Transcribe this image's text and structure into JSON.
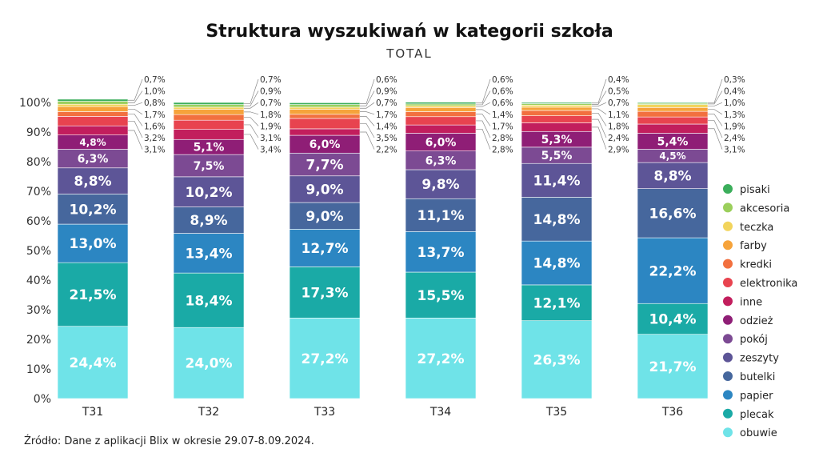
{
  "chart_data": {
    "type": "bar",
    "stacked": true,
    "title": "Struktura wyszukiwań w kategorii szkoła",
    "subtitle": "TOTAL",
    "categories": [
      "T31",
      "T32",
      "T33",
      "T34",
      "T35",
      "T36"
    ],
    "ylim": [
      0,
      100
    ],
    "yticks": [
      "0%",
      "10%",
      "20%",
      "30%",
      "40%",
      "50%",
      "60%",
      "70%",
      "80%",
      "90%",
      "100%"
    ],
    "grid": false,
    "legend_position": "right",
    "series": [
      {
        "name": "obuwie",
        "color": "#6fe3e8",
        "values": [
          24.4,
          24.0,
          27.2,
          27.2,
          26.3,
          21.7
        ],
        "labels": [
          "24,4%",
          "24,0%",
          "27,2%",
          "27,2%",
          "26,3%",
          "21,7%"
        ]
      },
      {
        "name": "plecak",
        "color": "#1aaaa6",
        "values": [
          21.5,
          18.4,
          17.3,
          15.5,
          12.1,
          10.4
        ],
        "labels": [
          "21,5%",
          "18,4%",
          "17,3%",
          "15,5%",
          "12,1%",
          "10,4%"
        ]
      },
      {
        "name": "papier",
        "color": "#2c86c2",
        "values": [
          13.0,
          13.4,
          12.7,
          13.7,
          14.8,
          22.2
        ],
        "labels": [
          "13,0%",
          "13,4%",
          "12,7%",
          "13,7%",
          "14,8%",
          "22,2%"
        ]
      },
      {
        "name": "butelki",
        "color": "#46679d",
        "values": [
          10.2,
          8.9,
          9.0,
          11.1,
          14.8,
          16.6
        ],
        "labels": [
          "10,2%",
          "8,9%",
          "9,0%",
          "11,1%",
          "14,8%",
          "16,6%"
        ]
      },
      {
        "name": "zeszyty",
        "color": "#5d5597",
        "values": [
          8.8,
          10.2,
          9.0,
          9.8,
          11.4,
          8.8
        ],
        "labels": [
          "8,8%",
          "10,2%",
          "9,0%",
          "9,8%",
          "11,4%",
          "8,8%"
        ]
      },
      {
        "name": "pokój",
        "color": "#7c4a93",
        "values": [
          6.3,
          7.5,
          7.7,
          6.3,
          5.5,
          4.5
        ],
        "labels": [
          "6,3%",
          "7,5%",
          "7,7%",
          "6,3%",
          "5,5%",
          "4,5%"
        ]
      },
      {
        "name": "odzież",
        "color": "#8f1e76",
        "values": [
          4.8,
          5.1,
          6.0,
          6.0,
          5.3,
          5.4
        ],
        "labels": [
          "4,8%",
          "5,1%",
          "6,0%",
          "6,0%",
          "5,3%",
          "5,4%"
        ]
      },
      {
        "name": "inne",
        "color": "#c21e5d",
        "values": [
          3.1,
          3.4,
          2.2,
          2.8,
          2.9,
          3.1
        ],
        "labels": [
          "3,1%",
          "3,4%",
          "2,2%",
          "2,8%",
          "2,9%",
          "3,1%"
        ]
      },
      {
        "name": "elektronika",
        "color": "#e8434f",
        "values": [
          3.2,
          3.1,
          3.5,
          2.8,
          2.4,
          2.4
        ],
        "labels": [
          "3,2%",
          "3,1%",
          "3,5%",
          "2,8%",
          "2,4%",
          "2,4%"
        ]
      },
      {
        "name": "kredki",
        "color": "#f2703f",
        "values": [
          1.6,
          1.9,
          1.4,
          1.7,
          1.8,
          1.9
        ],
        "labels": [
          "1,6%",
          "1,9%",
          "1,4%",
          "1,7%",
          "1,8%",
          "1,9%"
        ]
      },
      {
        "name": "farby",
        "color": "#f6a33b",
        "values": [
          1.7,
          1.8,
          1.7,
          1.4,
          1.1,
          1.3
        ],
        "labels": [
          "1,7%",
          "1,8%",
          "1,7%",
          "1,4%",
          "1,1%",
          "1,3%"
        ]
      },
      {
        "name": "teczka",
        "color": "#f2d45c",
        "values": [
          0.8,
          0.7,
          0.7,
          0.6,
          0.7,
          1.0
        ],
        "labels": [
          "0,8%",
          "0,7%",
          "0,7%",
          "0,6%",
          "0,7%",
          "1,0%"
        ]
      },
      {
        "name": "akcesoria",
        "color": "#9bcf5c",
        "values": [
          1.0,
          0.9,
          0.9,
          0.6,
          0.5,
          0.4
        ],
        "labels": [
          "1,0%",
          "0,9%",
          "0,9%",
          "0,6%",
          "0,5%",
          "0,4%"
        ]
      },
      {
        "name": "pisaki",
        "color": "#3bae5b",
        "values": [
          0.7,
          0.7,
          0.6,
          0.6,
          0.4,
          0.3
        ],
        "labels": [
          "0,7%",
          "0,7%",
          "0,6%",
          "0,6%",
          "0,4%",
          "0,3%"
        ]
      }
    ],
    "source": "Źródło: Dane z aplikacji Blix w okresie 29.07-8.09.2024."
  }
}
